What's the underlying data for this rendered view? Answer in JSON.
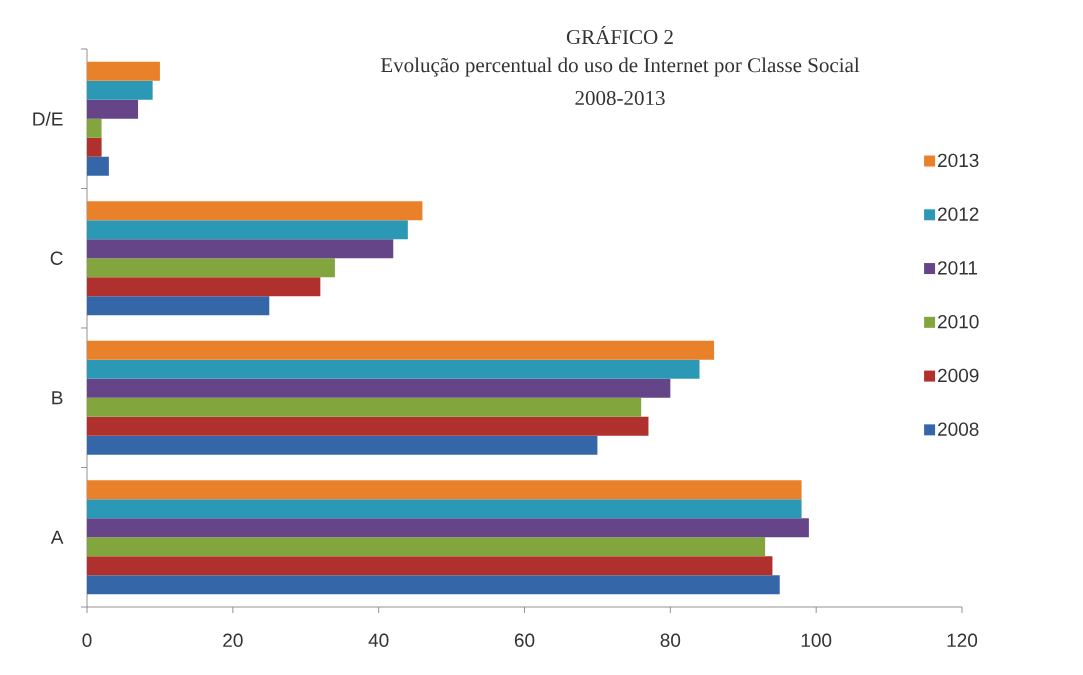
{
  "chart_data": {
    "type": "bar",
    "orientation": "horizontal",
    "title": "GRÁFICO 2",
    "subtitle": "Evolução percentual do uso de Internet por Classe Social",
    "annotations": [
      "2008-2013"
    ],
    "categories": [
      "D/E",
      "C",
      "B",
      "A"
    ],
    "series": [
      {
        "name": "2008",
        "color": "#3566a8",
        "values": [
          3,
          25,
          70,
          95
        ]
      },
      {
        "name": "2009",
        "color": "#b0302e",
        "values": [
          2,
          32,
          77,
          94
        ]
      },
      {
        "name": "2010",
        "color": "#82a53e",
        "values": [
          2,
          34,
          76,
          93
        ]
      },
      {
        "name": "2011",
        "color": "#654587",
        "values": [
          7,
          42,
          80,
          99
        ]
      },
      {
        "name": "2012",
        "color": "#2b98b5",
        "values": [
          9,
          44,
          84,
          98
        ]
      },
      {
        "name": "2013",
        "color": "#e9802a",
        "values": [
          10,
          46,
          86,
          98
        ]
      }
    ],
    "xlim": [
      0,
      120
    ],
    "xticks": [
      0,
      20,
      40,
      60,
      80,
      100,
      120
    ],
    "legend": "right"
  }
}
